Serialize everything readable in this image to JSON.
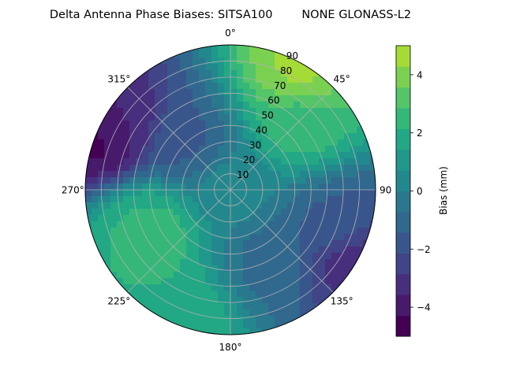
{
  "chart_data": {
    "type": "heatmap",
    "projection": "polar",
    "title": "Delta Antenna Phase Biases: SITSA100        NONE GLONASS-L2",
    "azimuth_labels": [
      {
        "deg": 0,
        "text": "0°"
      },
      {
        "deg": 45,
        "text": "45°"
      },
      {
        "deg": 135,
        "text": "135°"
      },
      {
        "deg": 180,
        "text": "180°"
      },
      {
        "deg": 225,
        "text": "225°"
      },
      {
        "deg": 270,
        "text": "270°"
      },
      {
        "deg": 315,
        "text": "315°"
      }
    ],
    "zenith_ticks": [
      10,
      20,
      30,
      40,
      50,
      60,
      70,
      80,
      90
    ],
    "zenith_label_90_right": "90",
    "radial_range": [
      0,
      90
    ],
    "grid": true,
    "colorbar": {
      "label": "Bias (mm)",
      "range": [
        -5,
        5
      ],
      "ticks": [
        -4,
        -2,
        0,
        2,
        4
      ],
      "levels": [
        -5,
        -4.2857,
        -3.5714,
        -2.8571,
        -2.1429,
        -1.4286,
        -0.7143,
        0,
        0.7143,
        1.4286,
        2.1429,
        2.8571,
        3.5714,
        4.2857,
        5
      ],
      "colors": [
        "#440154",
        "#481a6c",
        "#472f7d",
        "#414487",
        "#39568c",
        "#31688e",
        "#2a788e",
        "#23888e",
        "#1f988b",
        "#22a884",
        "#35b779",
        "#54c568",
        "#7ad151",
        "#a5db36",
        "#d2e21b"
      ]
    },
    "bias_field_samples_mm": [
      {
        "zenith": 0,
        "azimuth": 0,
        "bias": 0.3
      },
      {
        "zenith": 60,
        "azimuth": 45,
        "bias": 2.5
      },
      {
        "zenith": 85,
        "azimuth": 30,
        "bias": 4.5
      },
      {
        "zenith": 80,
        "azimuth": 300,
        "bias": -3.5
      },
      {
        "zenith": 85,
        "azimuth": 290,
        "bias": -4.6
      },
      {
        "zenith": 60,
        "azimuth": 250,
        "bias": 2.2
      },
      {
        "zenith": 55,
        "azimuth": 240,
        "bias": 2.8
      },
      {
        "zenith": 70,
        "azimuth": 110,
        "bias": -1.5
      },
      {
        "zenith": 85,
        "azimuth": 120,
        "bias": -3.5
      },
      {
        "zenith": 85,
        "azimuth": 200,
        "bias": 2.0
      },
      {
        "zenith": 40,
        "azimuth": 315,
        "bias": -1.6
      },
      {
        "zenith": 50,
        "azimuth": 150,
        "bias": -1.0
      }
    ]
  }
}
